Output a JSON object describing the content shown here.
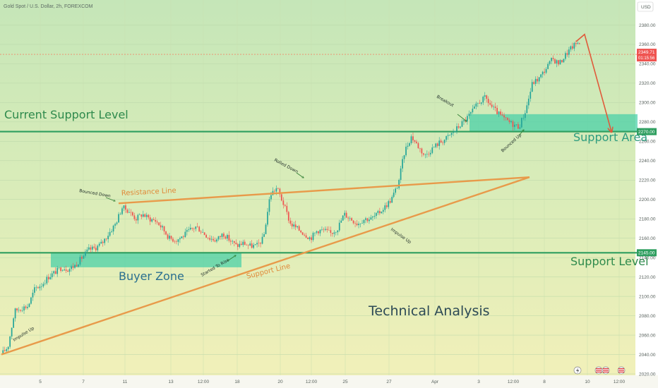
{
  "header": {
    "title": "Gold Spot / U.S. Dollar, 2h, FOREXCOM",
    "currency": "USD"
  },
  "colors": {
    "up": "#26a69a",
    "down": "#ef5350",
    "level_line": "#2e9e5f",
    "trend_line": "#e89a4a",
    "zone_fill": "#42cfa6",
    "forecast_arrow": "#e05a3a",
    "big_text_blue": "#2a6f8f",
    "big_text_teal": "#2c9c7e",
    "big_text_green": "#2e8a4c",
    "title_dark": "#2d4a55"
  },
  "chart_data": {
    "type": "candlestick",
    "title": "Gold Spot / U.S. Dollar, 2h, FOREXCOM",
    "ylim": [
      2020,
      2400
    ],
    "price_axis_labels": [
      "2020.00",
      "2040.00",
      "2060.00",
      "2080.00",
      "2100.00",
      "2120.00",
      "2140.00",
      "2160.00",
      "2180.00",
      "2200.00",
      "2220.00",
      "2240.00",
      "2260.00",
      "2280.00",
      "2300.00",
      "2320.00",
      "2340.00",
      "2360.00",
      "2380.00"
    ],
    "time_axis_labels": [
      "5",
      "7",
      "11",
      "13",
      "12:00",
      "18",
      "20",
      "12:00",
      "25",
      "27",
      "Apr",
      "3",
      "12:00",
      "8",
      "10",
      "12:00"
    ],
    "current_price_label": "2349.71",
    "countdown_label": "01:15:56",
    "level_labels": {
      "upper": "2270.00",
      "lower": "2145.00"
    },
    "horizontal_levels": [
      {
        "name": "Current Support Level",
        "price": 2270
      },
      {
        "name": "Support Level",
        "price": 2145
      }
    ],
    "zones": [
      {
        "name": "Buyer Zone",
        "price_from": 2130,
        "price_to": 2145
      },
      {
        "name": "Support Area",
        "price_from": 2270,
        "price_to": 2288
      }
    ],
    "trendlines": [
      {
        "name": "Resistance Line",
        "from": 2196,
        "to": 2223
      },
      {
        "name": "Support Line",
        "from": 2040,
        "to": 2223
      }
    ],
    "forecast": {
      "from_price": 2363,
      "peak_price": 2366,
      "to_price": 2270
    },
    "annotations": {
      "current_support": "Current Support Level",
      "support_area": "Support Area",
      "support_level": "Support Level",
      "buyer_zone": "Buyer Zone",
      "technical_analysis": "Technical Analysis",
      "resistance_line": "Resistance Line",
      "support_line": "Support Line",
      "bounced_down": "Bounced Down",
      "rolled_down": "Rolled Down",
      "breakout": "Breakout",
      "bounced_up": "Bounced Up",
      "started_to_rise": "Started To Rise",
      "impulse_up_1": "Impulse Up",
      "impulse_up_2": "Impulse Up"
    },
    "series": [
      {
        "name": "",
        "price_path": [
          2040,
          2048,
          2085,
          2088,
          2090,
          2108,
          2112,
          2120,
          2125,
          2130,
          2128,
          2132,
          2140,
          2148,
          2150,
          2155,
          2165,
          2175,
          2192,
          2188,
          2180,
          2185,
          2180,
          2178,
          2170,
          2160,
          2158,
          2162,
          2168,
          2172,
          2166,
          2160,
          2158,
          2165,
          2158,
          2152,
          2155,
          2152,
          2152,
          2160,
          2205,
          2212,
          2195,
          2175,
          2170,
          2165,
          2160,
          2168,
          2168,
          2165,
          2170,
          2185,
          2180,
          2175,
          2180,
          2180,
          2185,
          2192,
          2200,
          2215,
          2250,
          2265,
          2255,
          2245,
          2252,
          2258,
          2262,
          2268,
          2275,
          2282,
          2290,
          2300,
          2305,
          2295,
          2288,
          2282,
          2278,
          2275,
          2292,
          2320,
          2325,
          2335,
          2345,
          2340,
          2350,
          2358,
          2363
        ]
      }
    ]
  }
}
